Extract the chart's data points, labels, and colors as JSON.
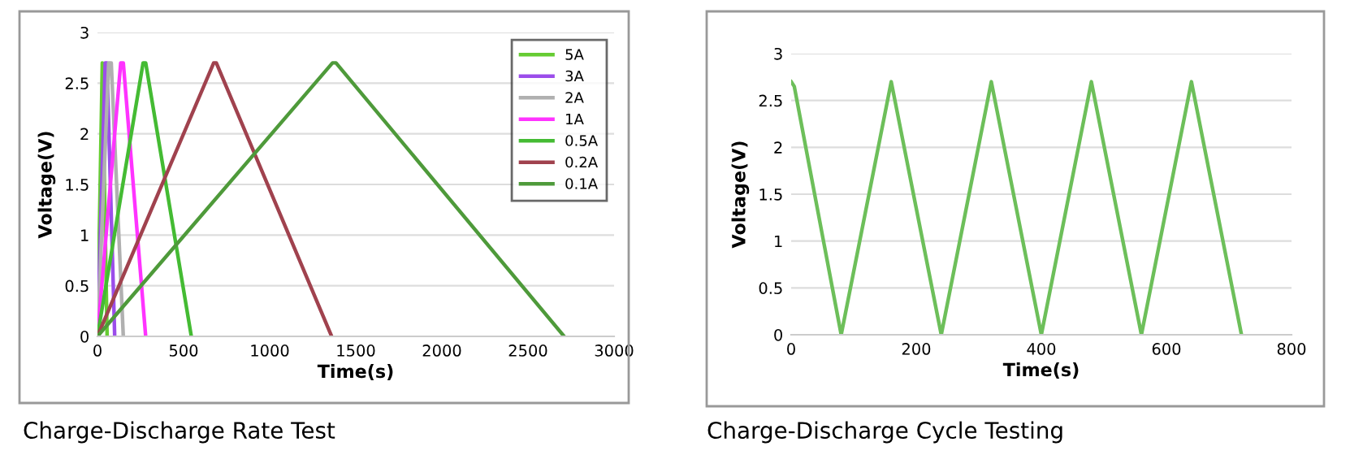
{
  "chart_data": [
    {
      "type": "line",
      "xlabel": "Time(s)",
      "ylabel": "Voltage(V)",
      "annotations": [
        "Charge-Discharge Rate Test"
      ],
      "xlim": [
        0,
        3000
      ],
      "xticks": [
        0,
        500,
        1000,
        1500,
        2000,
        2500,
        3000
      ],
      "ylim": [
        0,
        3
      ],
      "yticks": [
        0,
        0.5,
        1,
        1.5,
        2,
        2.5,
        3
      ],
      "grid": "y",
      "legend": "top right",
      "line_style": "solid",
      "marker": "none",
      "series": [
        {
          "name": "5A",
          "color": "#66cc33",
          "x": [
            0,
            28,
            56
          ],
          "values": [
            0,
            2.7,
            0
          ]
        },
        {
          "name": "3A",
          "color": "#9b4dea",
          "x": [
            0,
            45,
            55,
            100
          ],
          "values": [
            0,
            2.7,
            2.7,
            0
          ]
        },
        {
          "name": "2A",
          "color": "#b0b0b0",
          "x": [
            0,
            65,
            80,
            150
          ],
          "values": [
            0,
            2.7,
            2.7,
            0
          ]
        },
        {
          "name": "1A",
          "color": "#ff33ff",
          "x": [
            0,
            135,
            150,
            280
          ],
          "values": [
            0,
            2.7,
            2.7,
            0
          ]
        },
        {
          "name": "0.5A",
          "color": "#44bb33",
          "x": [
            0,
            265,
            280,
            545
          ],
          "values": [
            0,
            2.7,
            2.7,
            0
          ]
        },
        {
          "name": "0.2A",
          "color": "#a0424e",
          "x": [
            0,
            675,
            690,
            1360
          ],
          "values": [
            0,
            2.7,
            2.7,
            0
          ]
        },
        {
          "name": "0.1A",
          "color": "#4e9a3a",
          "x": [
            0,
            1365,
            1385,
            2710
          ],
          "values": [
            0,
            2.7,
            2.7,
            0
          ]
        }
      ]
    },
    {
      "type": "line",
      "xlabel": "Time(s)",
      "ylabel": "Voltage(V)",
      "annotations": [
        "Charge-Discharge Cycle Testing"
      ],
      "xlim": [
        0,
        800
      ],
      "xticks": [
        0,
        200,
        400,
        600,
        800
      ],
      "ylim": [
        0,
        3
      ],
      "yticks": [
        0,
        0.5,
        1,
        1.5,
        2,
        2.5,
        3
      ],
      "grid": "y",
      "line_style": "solid",
      "marker": "none",
      "series": [
        {
          "color": "#6dbf5a",
          "x": [
            0,
            5,
            80,
            160,
            240,
            320,
            400,
            480,
            560,
            640,
            720
          ],
          "values": [
            2.7,
            2.65,
            0,
            2.7,
            0,
            2.7,
            0,
            2.7,
            0,
            2.7,
            0
          ]
        }
      ]
    }
  ]
}
